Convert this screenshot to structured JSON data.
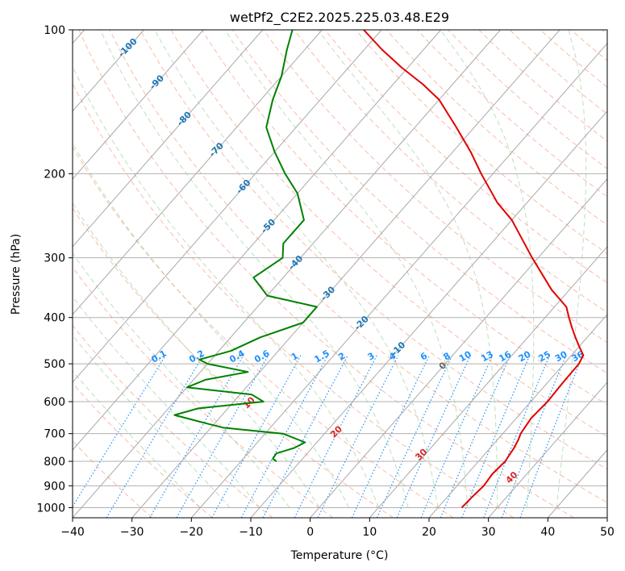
{
  "chart_data": {
    "type": "skew-t",
    "title": "wetPf2_C2E2.2025.225.03.48.E29",
    "xlabel": "Temperature (°C)",
    "ylabel": "Pressure (hPa)",
    "xlim": [
      -40,
      50
    ],
    "ylim": [
      1050,
      100
    ],
    "x_ticks": [
      -40,
      -30,
      -20,
      -10,
      0,
      10,
      20,
      30,
      40,
      50
    ],
    "y_ticks": [
      100,
      200,
      300,
      400,
      500,
      600,
      700,
      800,
      900,
      1000
    ],
    "isotherm_labels": {
      "color": "#1f77b4",
      "values": [
        -100,
        -90,
        -80,
        -70,
        -60,
        -50,
        -40,
        -30,
        -20,
        -10,
        0
      ]
    },
    "mixing_ratio_labels": {
      "color": "#1e90ff",
      "pressure": 500,
      "values": [
        "0.1",
        "0.2",
        "0.4",
        "0.6",
        "1",
        "1.5",
        "2",
        "3",
        "4",
        "6",
        "8",
        "10",
        "13",
        "16",
        "20",
        "25",
        "30",
        "36"
      ]
    },
    "dry_adiabat_labels": {
      "color": "#d62728",
      "values": [
        10,
        20,
        30,
        40
      ]
    },
    "series": [
      {
        "role": "temperature",
        "color": "#e00000",
        "points": [
          [
            1000,
            24.0
          ],
          [
            950,
            24.2
          ],
          [
            900,
            24.5
          ],
          [
            850,
            24.2
          ],
          [
            800,
            24.5
          ],
          [
            780,
            24.3
          ],
          [
            750,
            24.0
          ],
          [
            720,
            23.5
          ],
          [
            700,
            23.0
          ],
          [
            650,
            22.5
          ],
          [
            600,
            22.8
          ],
          [
            550,
            22.6
          ],
          [
            500,
            22.5
          ],
          [
            480,
            22.0
          ],
          [
            460,
            20.0
          ],
          [
            440,
            18.0
          ],
          [
            420,
            16.0
          ],
          [
            400,
            14.0
          ],
          [
            380,
            12.0
          ],
          [
            350,
            7.0
          ],
          [
            300,
            -1.0
          ],
          [
            250,
            -10.0
          ],
          [
            230,
            -15.0
          ],
          [
            200,
            -22.0
          ],
          [
            180,
            -27.0
          ],
          [
            160,
            -33.0
          ],
          [
            140,
            -40.0
          ],
          [
            130,
            -45.0
          ],
          [
            120,
            -51.0
          ],
          [
            110,
            -57.0
          ],
          [
            100,
            -63.0
          ]
        ]
      },
      {
        "role": "dewpoint",
        "color": "#008000",
        "points": [
          [
            800,
            -14.0
          ],
          [
            790,
            -15.0
          ],
          [
            770,
            -15.2
          ],
          [
            750,
            -13.0
          ],
          [
            730,
            -12.0
          ],
          [
            700,
            -17.0
          ],
          [
            680,
            -28.0
          ],
          [
            660,
            -33.0
          ],
          [
            640,
            -38.0
          ],
          [
            620,
            -35.0
          ],
          [
            600,
            -25.0
          ],
          [
            580,
            -28.0
          ],
          [
            560,
            -40.0
          ],
          [
            540,
            -38.0
          ],
          [
            520,
            -32.0
          ],
          [
            500,
            -40.0
          ],
          [
            490,
            -42.0
          ],
          [
            470,
            -38.0
          ],
          [
            440,
            -35.0
          ],
          [
            410,
            -30.0
          ],
          [
            380,
            -30.0
          ],
          [
            360,
            -40.0
          ],
          [
            330,
            -45.0
          ],
          [
            300,
            -43.0
          ],
          [
            280,
            -45.0
          ],
          [
            250,
            -45.0
          ],
          [
            220,
            -50.0
          ],
          [
            200,
            -55.0
          ],
          [
            180,
            -60.0
          ],
          [
            160,
            -65.0
          ],
          [
            140,
            -68.0
          ],
          [
            125,
            -70.0
          ],
          [
            110,
            -73.0
          ],
          [
            100,
            -75.0
          ]
        ]
      }
    ]
  }
}
